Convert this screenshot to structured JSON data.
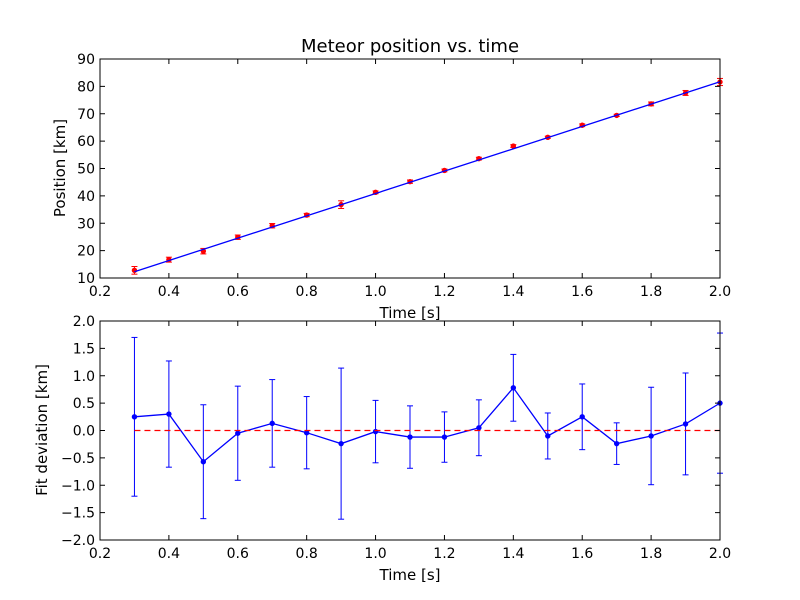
{
  "chart_data": [
    {
      "type": "scatter",
      "title": "Meteor position vs. time",
      "xlabel": "Time [s]",
      "ylabel": "Position [km]",
      "xlim": [
        0.2,
        2.0
      ],
      "ylim": [
        10,
        90
      ],
      "xticks": [
        "0.2",
        "0.4",
        "0.6",
        "0.8",
        "1.0",
        "1.2",
        "1.4",
        "1.6",
        "1.8",
        "2.0"
      ],
      "yticks": [
        "10",
        "20",
        "30",
        "40",
        "50",
        "60",
        "70",
        "80",
        "90"
      ],
      "grid": false,
      "series": [
        {
          "style": "red points with error bars",
          "color": "#ff0000",
          "x": [
            0.3,
            0.4,
            0.5,
            0.6,
            0.7,
            0.8,
            0.9,
            1.0,
            1.1,
            1.2,
            1.3,
            1.4,
            1.5,
            1.6,
            1.7,
            1.8,
            1.9,
            2.0
          ],
          "y": [
            12.8,
            16.7,
            19.8,
            24.9,
            29.1,
            33.0,
            36.8,
            41.3,
            45.2,
            49.3,
            53.6,
            58.2,
            61.4,
            65.8,
            69.4,
            73.6,
            77.6,
            81.6
          ],
          "yerr": [
            1.4,
            0.9,
            1.0,
            0.8,
            0.8,
            0.6,
            1.4,
            0.5,
            0.6,
            0.5,
            0.5,
            0.5,
            0.4,
            0.5,
            0.4,
            0.7,
            0.9,
            1.3
          ]
        },
        {
          "style": "blue fit line",
          "color": "#0000ff",
          "x": [
            0.3,
            2.0
          ],
          "y": [
            12.3,
            81.7
          ]
        }
      ]
    },
    {
      "type": "line",
      "xlabel": "Time [s]",
      "ylabel": "Fit deviation [km]",
      "xlim": [
        0.2,
        2.0
      ],
      "ylim": [
        -2.0,
        2.0
      ],
      "xticks": [
        "0.2",
        "0.4",
        "0.6",
        "0.8",
        "1.0",
        "1.2",
        "1.4",
        "1.6",
        "1.8",
        "2.0"
      ],
      "yticks": [
        "2.0",
        "1.5",
        "1.0",
        "0.5",
        "0.0",
        "−0.5",
        "−1.0",
        "−1.5",
        "−2.0"
      ],
      "grid": false,
      "series": [
        {
          "style": "blue line with points and error bars",
          "color": "#0000ff",
          "x": [
            0.3,
            0.4,
            0.5,
            0.6,
            0.7,
            0.8,
            0.9,
            1.0,
            1.1,
            1.2,
            1.3,
            1.4,
            1.5,
            1.6,
            1.7,
            1.8,
            1.9,
            2.0
          ],
          "y": [
            0.25,
            0.3,
            -0.57,
            -0.05,
            0.13,
            -0.04,
            -0.24,
            -0.02,
            -0.12,
            -0.12,
            0.05,
            0.78,
            -0.1,
            0.25,
            -0.24,
            -0.1,
            0.12,
            0.5
          ],
          "yerr": [
            1.45,
            0.97,
            1.04,
            0.86,
            0.8,
            0.66,
            1.38,
            0.57,
            0.57,
            0.46,
            0.51,
            0.61,
            0.42,
            0.6,
            0.38,
            0.89,
            0.93,
            1.28
          ]
        },
        {
          "style": "red dashed reference line",
          "color": "#ff0000",
          "x": [
            0.3,
            2.0
          ],
          "y": [
            0.0,
            0.0
          ]
        }
      ]
    }
  ]
}
